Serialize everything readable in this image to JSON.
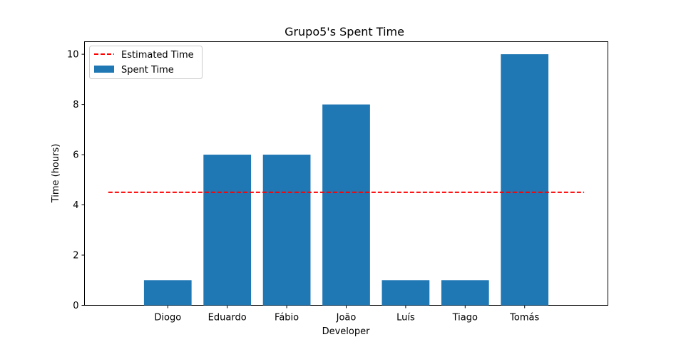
{
  "chart_data": {
    "type": "bar",
    "title": "Grupo5's Spent Time",
    "xlabel": "Developer",
    "ylabel": "Time (hours)",
    "categories": [
      "Diogo",
      "Eduardo",
      "Fábio",
      "João",
      "Luís",
      "Tiago",
      "Tomás"
    ],
    "series": [
      {
        "name": "Spent Time",
        "type": "bar",
        "values": [
          1,
          6,
          6,
          8,
          1,
          1,
          10
        ],
        "color": "#1f77b4"
      }
    ],
    "reference_lines": [
      {
        "name": "Estimated Time",
        "y": 4.5,
        "style": "dashed",
        "color": "#ff0000"
      }
    ],
    "yticks": [
      0,
      2,
      4,
      6,
      8,
      10
    ],
    "ylim": [
      0,
      10.5
    ],
    "grid": false,
    "legend": {
      "placement": "top-left",
      "entries": [
        "Estimated Time",
        "Spent Time"
      ]
    }
  }
}
